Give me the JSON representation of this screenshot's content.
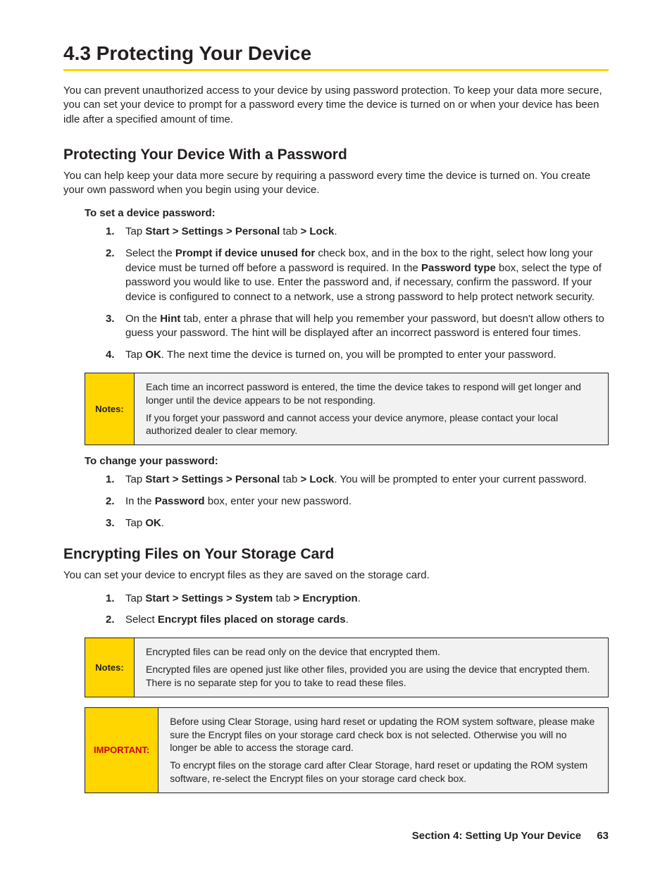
{
  "colors": {
    "accent_rule": "#ffd600",
    "notes_bg": "#ffd600",
    "callout_body_bg": "#f2f2f2",
    "important_text": "#c00",
    "text": "#231f20"
  },
  "h1": "4.3  Protecting Your Device",
  "intro": "You can prevent unauthorized access to your device by using password protection. To keep your data more secure, you can set your device to prompt for a password every time the device is turned on or when your device has been idle after a specified amount of time.",
  "section1": {
    "h2": "Protecting Your Device With a Password",
    "body": "You can help keep your data more secure by requiring a password every time the device is turned on. You create your own password when you begin using your device.",
    "proc1": {
      "h3": "To set a device password:",
      "steps": [
        {
          "num": "1.",
          "pre": "Tap ",
          "bold1": "Start > Settings > Personal",
          "mid": " tab ",
          "bold2": "> Lock",
          "post": "."
        },
        {
          "num": "2.",
          "pre": "Select the ",
          "bold1": "Prompt if device unused for",
          "mid": " check box, and in the box to the right, select how long your device must be turned off before a password is required. In the ",
          "bold2": "Password type",
          "post": " box, select the type of password you would like to use. Enter the password and, if necessary, confirm the password. If your device is configured to connect to a network, use a strong password to help protect network security."
        },
        {
          "num": "3.",
          "pre": "On the ",
          "bold1": "Hint",
          "mid": " tab, enter a phrase that will help you remember your password, but doesn't allow others to guess your password. The hint will be displayed after an incorrect password is entered four times.",
          "bold2": "",
          "post": ""
        },
        {
          "num": "4.",
          "pre": "Tap ",
          "bold1": "OK",
          "mid": ". The next time the device is turned on, you will be prompted to enter your password.",
          "bold2": "",
          "post": ""
        }
      ]
    },
    "notes1": {
      "label": "Notes:",
      "p1": "Each time an incorrect password is entered, the time the device takes to respond will get longer and longer until the device appears to be not responding.",
      "p2": "If you forget your password and cannot access your device anymore, please contact your local authorized dealer to clear memory."
    },
    "proc2": {
      "h3": "To change your password:",
      "steps": [
        {
          "num": "1.",
          "pre": "Tap ",
          "bold1": "Start > Settings > Personal",
          "mid": " tab ",
          "bold2": "> Lock",
          "post": ". You will be prompted to enter your current password."
        },
        {
          "num": "2.",
          "pre": "In the ",
          "bold1": "Password",
          "mid": " box, enter your new password.",
          "bold2": "",
          "post": ""
        },
        {
          "num": "3.",
          "pre": "Tap ",
          "bold1": "OK",
          "mid": ".",
          "bold2": "",
          "post": ""
        }
      ]
    }
  },
  "section2": {
    "h2": "Encrypting Files on Your Storage Card",
    "body": "You can set your device to encrypt files as they are saved on the storage card.",
    "steps": [
      {
        "num": "1.",
        "pre": "Tap ",
        "bold1": "Start > Settings > System",
        "mid": " tab ",
        "bold2": "> Encryption",
        "post": "."
      },
      {
        "num": "2.",
        "pre": "Select ",
        "bold1": "Encrypt files placed on storage cards",
        "mid": ".",
        "bold2": "",
        "post": ""
      }
    ],
    "notes": {
      "label": "Notes:",
      "p1": "Encrypted files can be read only on the device that encrypted them.",
      "p2": "Encrypted files are opened just like other files, provided you are using the device that encrypted them. There is no separate step for you to take to read these files."
    },
    "important": {
      "label": "IMPORTANT:",
      "p1": "Before using Clear Storage, using hard reset or updating the ROM system software, please make sure the Encrypt files on your storage card check box is not selected. Otherwise you will no longer be able to access the storage card.",
      "p2": "To encrypt files on the storage card after Clear Storage, hard reset or updating the ROM system software, re-select the Encrypt files on your storage card check box."
    }
  },
  "footer": {
    "section": "Section 4: Setting Up Your Device",
    "page": "63"
  }
}
